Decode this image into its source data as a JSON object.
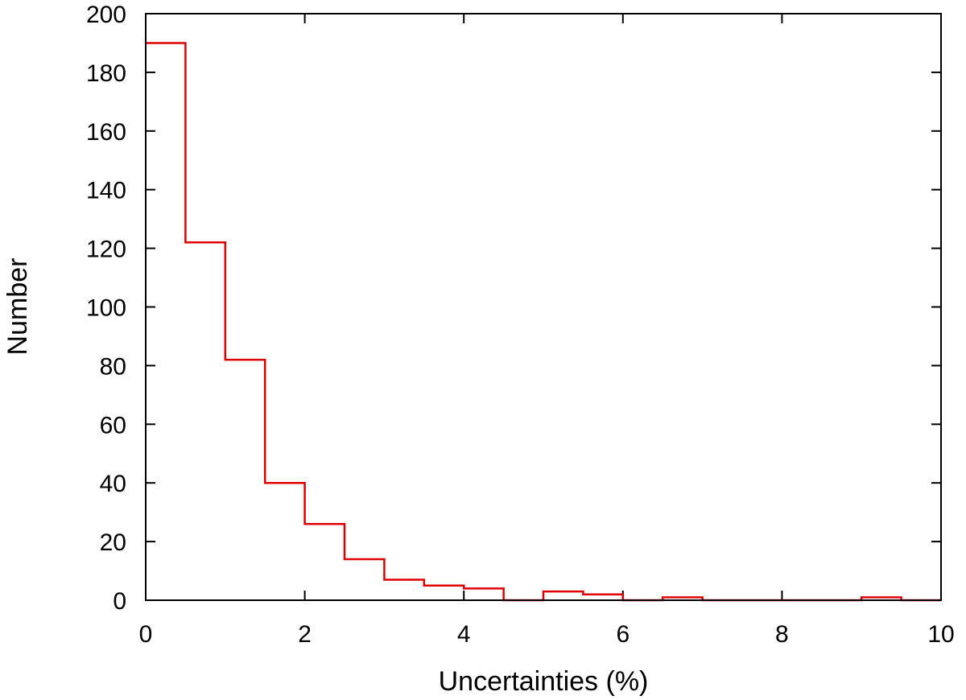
{
  "chart_data": {
    "type": "bar",
    "style": "step-histogram",
    "xlabel": "Uncertainties (%)",
    "ylabel": "Number",
    "xlim": [
      0,
      10
    ],
    "ylim": [
      0,
      200
    ],
    "xticks": [
      "0",
      "2",
      "4",
      "6",
      "8",
      "10"
    ],
    "yticks": [
      "0",
      "20",
      "40",
      "60",
      "80",
      "100",
      "120",
      "140",
      "160",
      "180",
      "200"
    ],
    "bin_width": 0.5,
    "bins": [
      {
        "x0": 0.0,
        "x1": 0.5,
        "count": 190
      },
      {
        "x0": 0.5,
        "x1": 1.0,
        "count": 122
      },
      {
        "x0": 1.0,
        "x1": 1.5,
        "count": 82
      },
      {
        "x0": 1.5,
        "x1": 2.0,
        "count": 40
      },
      {
        "x0": 2.0,
        "x1": 2.5,
        "count": 26
      },
      {
        "x0": 2.5,
        "x1": 3.0,
        "count": 14
      },
      {
        "x0": 3.0,
        "x1": 3.5,
        "count": 7
      },
      {
        "x0": 3.5,
        "x1": 4.0,
        "count": 5
      },
      {
        "x0": 4.0,
        "x1": 4.5,
        "count": 4
      },
      {
        "x0": 4.5,
        "x1": 5.0,
        "count": 0
      },
      {
        "x0": 5.0,
        "x1": 5.5,
        "count": 3
      },
      {
        "x0": 5.5,
        "x1": 6.0,
        "count": 2
      },
      {
        "x0": 6.0,
        "x1": 6.5,
        "count": 0
      },
      {
        "x0": 6.5,
        "x1": 7.0,
        "count": 1
      },
      {
        "x0": 7.0,
        "x1": 7.5,
        "count": 0
      },
      {
        "x0": 7.5,
        "x1": 8.0,
        "count": 0
      },
      {
        "x0": 8.0,
        "x1": 8.5,
        "count": 0
      },
      {
        "x0": 8.5,
        "x1": 9.0,
        "count": 0
      },
      {
        "x0": 9.0,
        "x1": 9.5,
        "count": 1
      },
      {
        "x0": 9.5,
        "x1": 10.0,
        "count": 0
      }
    ],
    "line_color": "#e00000",
    "grid": false,
    "legend": "none"
  }
}
